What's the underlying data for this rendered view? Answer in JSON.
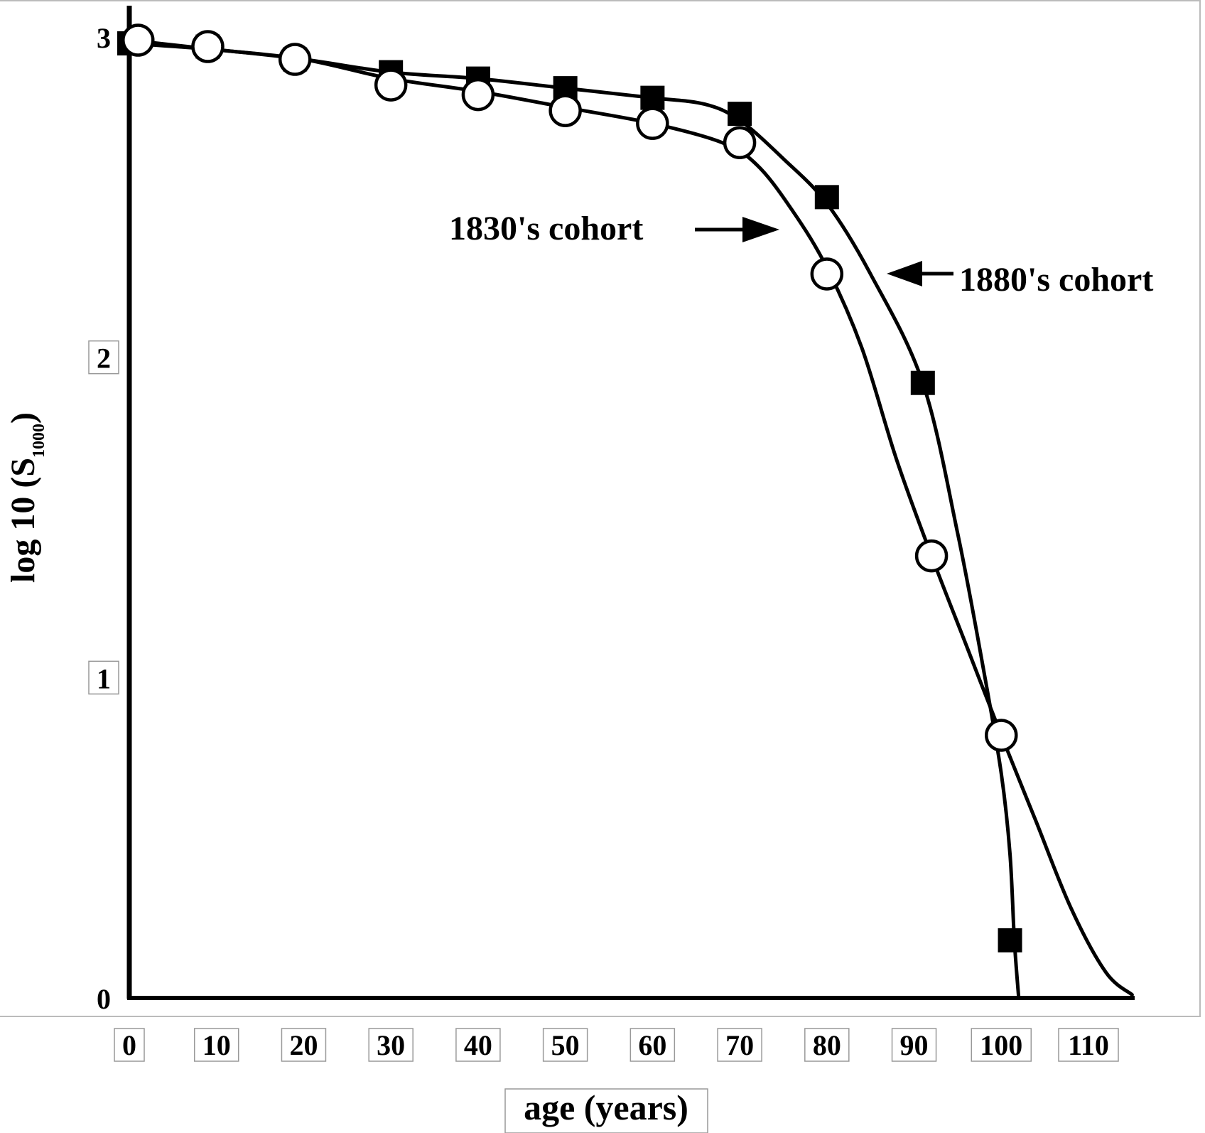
{
  "chart_data": {
    "type": "line",
    "title": "",
    "xlabel": "age (years)",
    "ylabel_main": "log 10 (S",
    "ylabel_sub": "1000",
    "ylabel_close": ")",
    "xlim": [
      0,
      115
    ],
    "ylim": [
      0,
      3
    ],
    "x_ticks": [
      "0",
      "10",
      "20",
      "30",
      "40",
      "50",
      "60",
      "70",
      "80",
      "90",
      "100",
      "110"
    ],
    "y_ticks": [
      "0",
      "1",
      "2",
      "3"
    ],
    "series": [
      {
        "name": "1830's cohort",
        "marker": "open-circle",
        "x": [
          1,
          9,
          19,
          30,
          40,
          50,
          60,
          70,
          80,
          92,
          100
        ],
        "y": [
          2.99,
          2.97,
          2.93,
          2.85,
          2.82,
          2.77,
          2.73,
          2.67,
          2.26,
          1.38,
          0.82
        ],
        "line_x": [
          0,
          10,
          20,
          30,
          40,
          50,
          60,
          68,
          72,
          76,
          80,
          84,
          88,
          92,
          96,
          100,
          104,
          108,
          112,
          115
        ],
        "line_y": [
          2.99,
          2.96,
          2.93,
          2.87,
          2.83,
          2.78,
          2.73,
          2.67,
          2.6,
          2.46,
          2.28,
          2.03,
          1.68,
          1.38,
          1.1,
          0.82,
          0.55,
          0.28,
          0.08,
          0.01
        ]
      },
      {
        "name": "1880's cohort",
        "marker": "filled-square",
        "x": [
          0,
          9,
          19,
          30,
          40,
          50,
          60,
          70,
          80,
          91,
          101
        ],
        "y": [
          2.98,
          2.97,
          2.93,
          2.89,
          2.87,
          2.84,
          2.81,
          2.76,
          2.5,
          1.92,
          0.18
        ],
        "line_x": [
          0,
          10,
          20,
          30,
          40,
          50,
          60,
          66,
          70,
          75,
          80,
          85,
          91,
          95,
          98,
          100,
          101,
          101.5,
          102
        ],
        "line_y": [
          2.98,
          2.96,
          2.93,
          2.89,
          2.87,
          2.84,
          2.81,
          2.79,
          2.74,
          2.62,
          2.48,
          2.26,
          1.92,
          1.45,
          1.02,
          0.7,
          0.45,
          0.18,
          0.0
        ]
      }
    ],
    "annotations": [
      {
        "text": "1830's cohort",
        "series": "1830's cohort",
        "side": "left"
      },
      {
        "text": "1880's cohort",
        "series": "1880's cohort",
        "side": "right"
      }
    ]
  }
}
